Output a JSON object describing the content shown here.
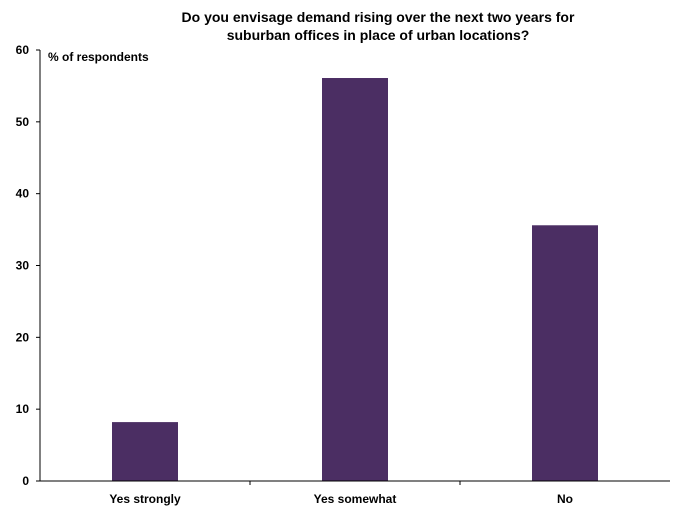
{
  "chart_data": {
    "type": "bar",
    "title_lines": [
      "Do you envisage demand rising over the next two years for",
      "suburban offices in place of urban locations?"
    ],
    "ylabel": "% of respondents",
    "xlabel": "",
    "categories": [
      "Yes strongly",
      "Yes somewhat",
      "No"
    ],
    "values": [
      8.2,
      56.1,
      35.6
    ],
    "ylim": [
      0,
      60
    ],
    "yticks": [
      0,
      10,
      20,
      30,
      40,
      50,
      60
    ],
    "bar_color": "#4b2e63",
    "grid": false,
    "legend": "none"
  }
}
